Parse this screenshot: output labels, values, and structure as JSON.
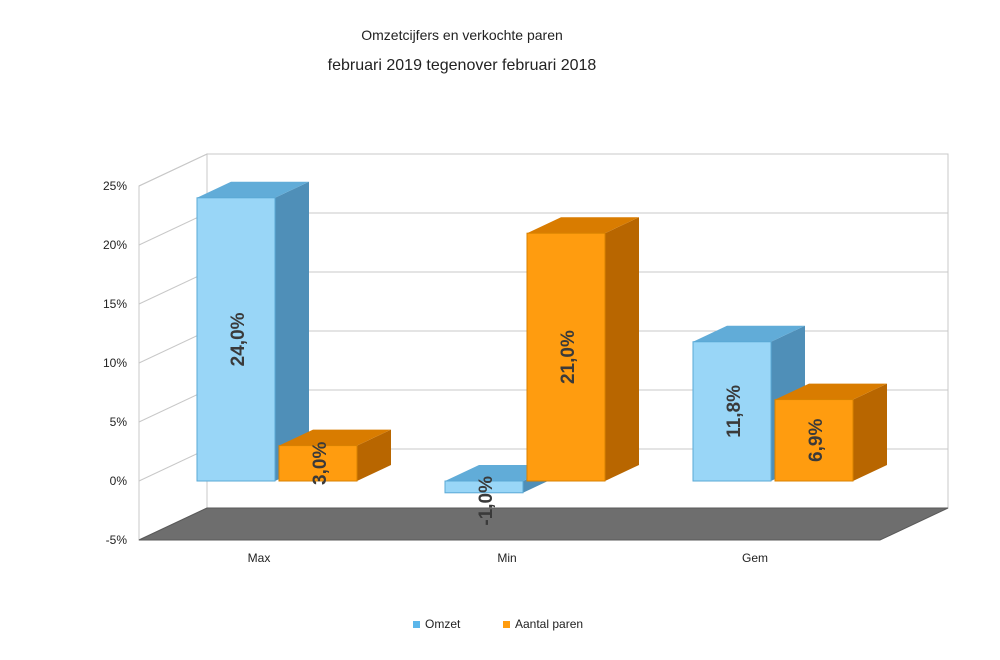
{
  "chart_data": {
    "type": "bar",
    "title": "Omzetcijfers en verkochte paren",
    "subtitle": "februari 2019 tegenover februari 2018",
    "categories": [
      "Max",
      "Min",
      "Gem"
    ],
    "series": [
      {
        "name": "Omzet",
        "values": [
          24.0,
          -1.0,
          11.8
        ],
        "labels": [
          "24,0%",
          "-1,0%",
          "11,8%"
        ],
        "color": "#99d6f7"
      },
      {
        "name": "Aantal paren",
        "values": [
          3.0,
          21.0,
          6.9
        ],
        "labels": [
          "3,0%",
          "21,0%",
          "6,9%"
        ],
        "color": "#ff9c0f"
      }
    ],
    "yticks": [
      "25%",
      "20%",
      "15%",
      "10%",
      "5%",
      "0%",
      "-5%"
    ],
    "ylim": [
      -5,
      25
    ],
    "grid": true,
    "legend_position": "bottom",
    "three_d": true
  }
}
